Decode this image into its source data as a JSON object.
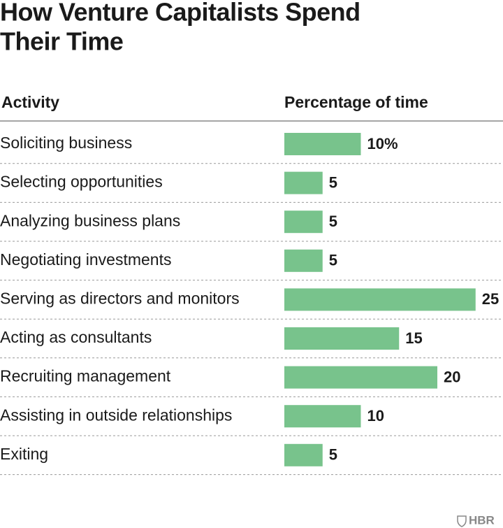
{
  "chart_data": {
    "type": "bar",
    "orientation": "horizontal",
    "title": "How Venture Capitalists Spend Their Time",
    "category_header": "Activity",
    "value_header": "Percentage of time",
    "categories": [
      "Soliciting business",
      "Selecting opportunities",
      "Analyzing business plans",
      "Negotiating investments",
      "Serving as directors and monitors",
      "Acting as consultants",
      "Recruiting management",
      "Assisting in outside relationships",
      "Exiting"
    ],
    "values": [
      10,
      5,
      5,
      5,
      25,
      15,
      20,
      10,
      5
    ],
    "value_labels": [
      "10%",
      "5",
      "5",
      "5",
      "25",
      "15",
      "20",
      "10",
      "5"
    ],
    "color": "#78c38c",
    "source": "HBR"
  }
}
